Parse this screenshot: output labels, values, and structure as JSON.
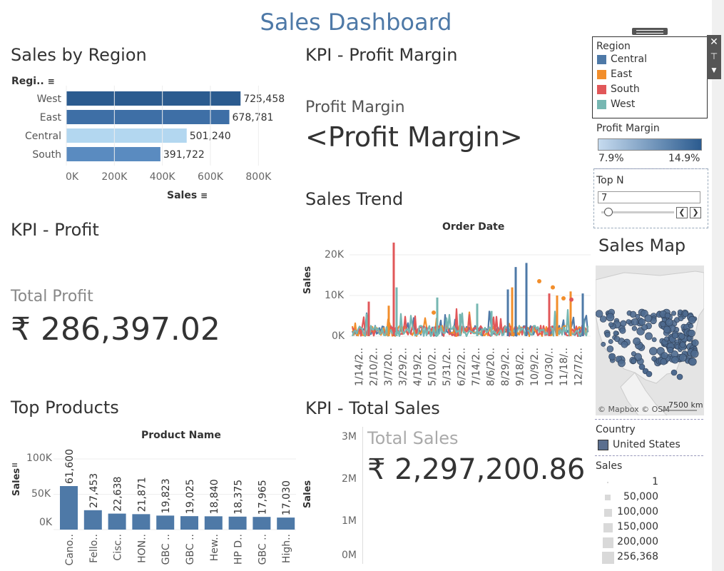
{
  "title": "Sales Dashboard",
  "sections": {
    "sales_by_region": "Sales by Region",
    "kpi_profit_margin": "KPI - Profit Margin",
    "kpi_profit": "KPI - Profit",
    "sales_trend": "Sales Trend",
    "top_products": "Top Products",
    "kpi_total_sales": "KPI - Total Sales",
    "sales_map": "Sales Map"
  },
  "region_chart": {
    "column_header": "Regi..",
    "xlabel": "Sales",
    "ticks": [
      "0K",
      "200K",
      "400K",
      "600K",
      "800K"
    ]
  },
  "profit_margin": {
    "label": "Profit Margin",
    "value": "<Profit Margin>"
  },
  "profit": {
    "label": "Total Profit",
    "value": "₹ 286,397.02"
  },
  "total_sales": {
    "label": "Total Sales",
    "value": "₹ 2,297,200.86",
    "ylabel": "Sales",
    "ticks": [
      "3M",
      "2M",
      "1M",
      "0M"
    ]
  },
  "trend_chart": {
    "xlabel": "Order Date",
    "ylabel": "Sales",
    "yticks": [
      "20K",
      "10K",
      "0K"
    ],
    "date_ticks": [
      "1/14/2..",
      "2/10/2..",
      "3/7/20..",
      "3/29/2..",
      "4/19/2..",
      "5/10/2..",
      "5/31/2..",
      "6/22/2..",
      "7/14/2..",
      "8/6/20..",
      "8/29/2..",
      "9/18/2..",
      "10/9/2..",
      "10/30/..",
      "11/18/..",
      "12/7/2.."
    ]
  },
  "products_chart": {
    "xlabel": "Product Name",
    "ylabel": "Sales",
    "yticks": [
      "100K",
      "50K",
      "0K"
    ],
    "categories": [
      "Cano..",
      "Fello..",
      "Cisc..",
      "HON..",
      "GBC ..",
      "GBC ..",
      "Hew..",
      "HP D..",
      "GBC ..",
      "High.."
    ],
    "value_labels": [
      "61,600",
      "27,453",
      "22,638",
      "21,871",
      "19,823",
      "19,025",
      "18,840",
      "18,375",
      "17,965",
      "17,030"
    ]
  },
  "chart_data": [
    {
      "type": "bar",
      "orientation": "horizontal",
      "title": "Sales by Region",
      "categories": [
        "West",
        "East",
        "Central",
        "South"
      ],
      "values": [
        725458,
        678781,
        501240,
        391722
      ],
      "value_labels": [
        "725,458",
        "678,781",
        "501,240",
        "391,722"
      ],
      "xlabel": "Sales",
      "xlim": [
        0,
        900000
      ]
    },
    {
      "type": "bar",
      "title": "Top Products",
      "xlabel": "Product Name",
      "ylabel": "Sales",
      "categories": [
        "Cano..",
        "Fello..",
        "Cisc..",
        "HON..",
        "GBC ..",
        "GBC ..",
        "Hew..",
        "HP D..",
        "GBC ..",
        "High.."
      ],
      "values": [
        61600,
        27453,
        22638,
        21871,
        19823,
        19025,
        18840,
        18375,
        17965,
        17030
      ],
      "ylim": [
        0,
        110000
      ]
    },
    {
      "type": "line",
      "title": "Sales Trend",
      "xlabel": "Order Date",
      "ylabel": "Sales",
      "ylim": [
        0,
        24000
      ],
      "series": [
        {
          "name": "Central",
          "color": "#4e79a7"
        },
        {
          "name": "East",
          "color": "#f28e2b"
        },
        {
          "name": "South",
          "color": "#e15759"
        },
        {
          "name": "West",
          "color": "#76b7b2"
        }
      ],
      "peaks": [
        {
          "series": "South",
          "x": "3/7/20..",
          "y": 23000
        },
        {
          "series": "Central",
          "x": "10/9/2..",
          "y": 18000
        },
        {
          "series": "Central",
          "x": "8/29/2..",
          "y": 17000
        },
        {
          "series": "East",
          "x": "10/9/2..",
          "y": 13500
        }
      ]
    }
  ],
  "legend": {
    "title": "Region",
    "items": [
      {
        "label": "Central",
        "color": "#4e79a7"
      },
      {
        "label": "East",
        "color": "#f28e2b"
      },
      {
        "label": "South",
        "color": "#e15759"
      },
      {
        "label": "West",
        "color": "#76b7b2"
      }
    ],
    "controls": [
      "close-icon",
      "pin-icon",
      "dropdown-icon"
    ]
  },
  "profit_margin_scale": {
    "title": "Profit Margin",
    "min": "7.9%",
    "max": "14.9%",
    "color_low": "#c6dbef",
    "color_high": "#2b5b8f"
  },
  "topn": {
    "title": "Top N",
    "value": "7",
    "slider_fraction": 0.0
  },
  "map": {
    "attribution": "© Mapbox © OSM",
    "scale": "7500 km"
  },
  "country_legend": {
    "title": "Country",
    "item": "United States",
    "color": "#5b6f8f"
  },
  "size_legend": {
    "title": "Sales",
    "items": [
      "1",
      "50,000",
      "100,000",
      "150,000",
      "200,000",
      "256,368"
    ]
  },
  "colors": {
    "title": "#4e79a7",
    "bar_dark": "#2b5b8f",
    "bar_mid": "#3e6fa6",
    "bar_light": "#b3d7f0",
    "bar_medium": "#5a8bc0",
    "product_bar": "#4e79a7"
  }
}
